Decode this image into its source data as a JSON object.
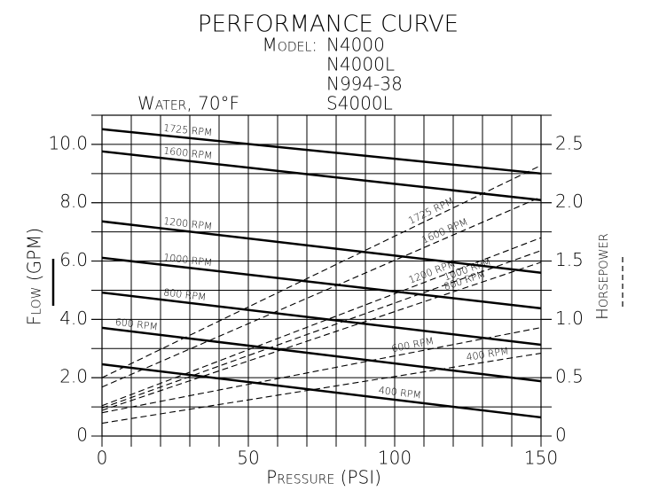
{
  "chart_data": {
    "type": "line",
    "title": "PERFORMANCE CURVE",
    "model_label": "Model:",
    "models": [
      "N4000",
      "N4000L",
      "N994-38",
      "S4000L"
    ],
    "note": "Water, 70°F",
    "x_label": "Pressure (PSI)",
    "y_label": "Flow (GPM)",
    "y2_label": "Horsepower",
    "x": [
      0,
      150
    ],
    "xlim": [
      0,
      150
    ],
    "xticks": [
      0,
      50,
      100,
      150
    ],
    "ylim": [
      0,
      11
    ],
    "yticks": [
      0,
      {
        "value": 2,
        "label": "2.0"
      },
      {
        "value": 4,
        "label": "4.0"
      },
      {
        "value": 6,
        "label": "6.0"
      },
      {
        "value": 8,
        "label": "8.0"
      },
      {
        "value": 10,
        "label": "10.0"
      }
    ],
    "y2lim": [
      0,
      2.75
    ],
    "y2ticks": [
      0,
      0.5,
      {
        "value": 1,
        "label": "1.0"
      },
      1.5,
      {
        "value": 2,
        "label": "2.0"
      },
      2.5
    ],
    "grid": true,
    "series": [
      {
        "name": "1725 RPM",
        "color": "#000000",
        "style": "solid",
        "values": [
          10.52,
          9.0
        ]
      },
      {
        "name": "1600 RPM",
        "color": "#000000",
        "style": "solid",
        "values": [
          9.76,
          8.09
        ]
      },
      {
        "name": "1200 RPM",
        "color": "#000000",
        "style": "solid",
        "values": [
          7.36,
          5.6
        ]
      },
      {
        "name": "1000 RPM",
        "color": "#000000",
        "style": "solid",
        "values": [
          6.11,
          4.38
        ]
      },
      {
        "name": "800 RPM",
        "color": "#000000",
        "style": "solid",
        "values": [
          4.92,
          3.13
        ]
      },
      {
        "name": "600 RPM",
        "color": "#000000",
        "style": "solid",
        "values": [
          3.71,
          1.88
        ]
      },
      {
        "name": "400 RPM",
        "color": "#000000",
        "style": "solid",
        "values": [
          2.46,
          0.64
        ]
      },
      {
        "name": "1725 RPM",
        "color": "#000000",
        "style": "dashed",
        "axis": "y2",
        "values": [
          0.5,
          2.32
        ]
      },
      {
        "name": "1600 RPM",
        "color": "#000000",
        "style": "dashed",
        "axis": "y2",
        "values": [
          0.42,
          2.05
        ]
      },
      {
        "name": "1200 RPM",
        "color": "#000000",
        "style": "dashed",
        "axis": "y2",
        "values": [
          0.26,
          1.7
        ]
      },
      {
        "name": "1000 RPM",
        "color": "#000000",
        "style": "dashed",
        "axis": "y2",
        "values": [
          0.24,
          1.59
        ]
      },
      {
        "name": "800 RPM",
        "color": "#000000",
        "style": "dashed",
        "axis": "y2",
        "values": [
          0.22,
          1.49
        ]
      },
      {
        "name": "600 RPM",
        "color": "#000000",
        "style": "dashed",
        "axis": "y2",
        "values": [
          0.2,
          0.93
        ]
      },
      {
        "name": "400 RPM",
        "color": "#000000",
        "style": "dashed",
        "axis": "y2",
        "values": [
          0.11,
          0.71
        ]
      }
    ]
  }
}
